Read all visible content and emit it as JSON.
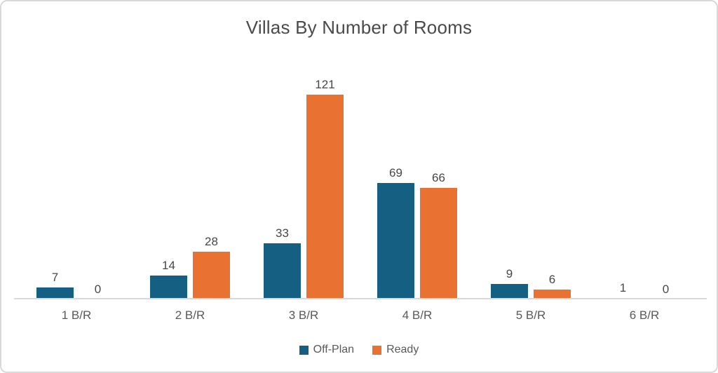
{
  "chart_data": {
    "type": "bar",
    "title": "Villas By Number of Rooms",
    "categories": [
      "1 B/R",
      "2 B/R",
      "3 B/R",
      "4 B/R",
      "5 B/R",
      "6 B/R"
    ],
    "series": [
      {
        "name": "Off-Plan",
        "color": "#156082",
        "values": [
          7,
          14,
          33,
          69,
          9,
          1
        ]
      },
      {
        "name": "Ready",
        "color": "#E97132",
        "values": [
          0,
          28,
          121,
          66,
          6,
          0
        ]
      }
    ],
    "ylim": [
      0,
      130
    ],
    "grid": false,
    "data_labels": true,
    "legend_position": "bottom"
  },
  "colors": {
    "background": "#ffffff",
    "border": "#d9d9d9",
    "axis_line": "#d9d9d9",
    "title_text": "#4a4a4a",
    "data_label_text": "#474747",
    "axis_text": "#595959"
  }
}
